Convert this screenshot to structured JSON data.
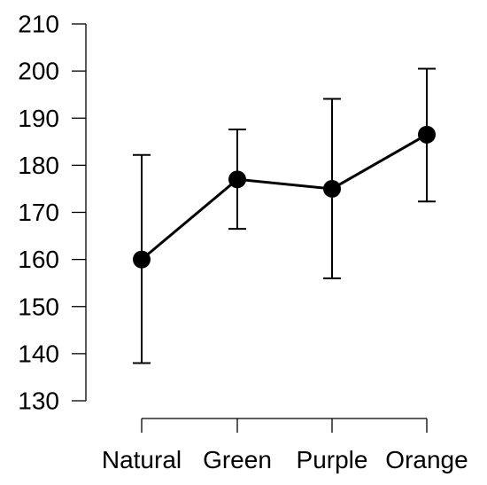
{
  "chart_data": {
    "type": "line",
    "title": "",
    "xlabel": "",
    "ylabel": "",
    "categories": [
      "Natural",
      "Green",
      "Purple",
      "Orange"
    ],
    "y_ticks": [
      "130",
      "140",
      "150",
      "160",
      "170",
      "180",
      "190",
      "200",
      "210"
    ],
    "ylim": [
      130,
      210
    ],
    "grid": false,
    "legend": "none",
    "series": [
      {
        "values": [
          160,
          177,
          175,
          186.5
        ],
        "error_low": [
          138,
          166.5,
          156,
          172.3
        ],
        "error_high": [
          182.2,
          187.6,
          194.1,
          200.5
        ]
      }
    ],
    "colors": {
      "line": "#000000",
      "marker": "#000000"
    }
  }
}
